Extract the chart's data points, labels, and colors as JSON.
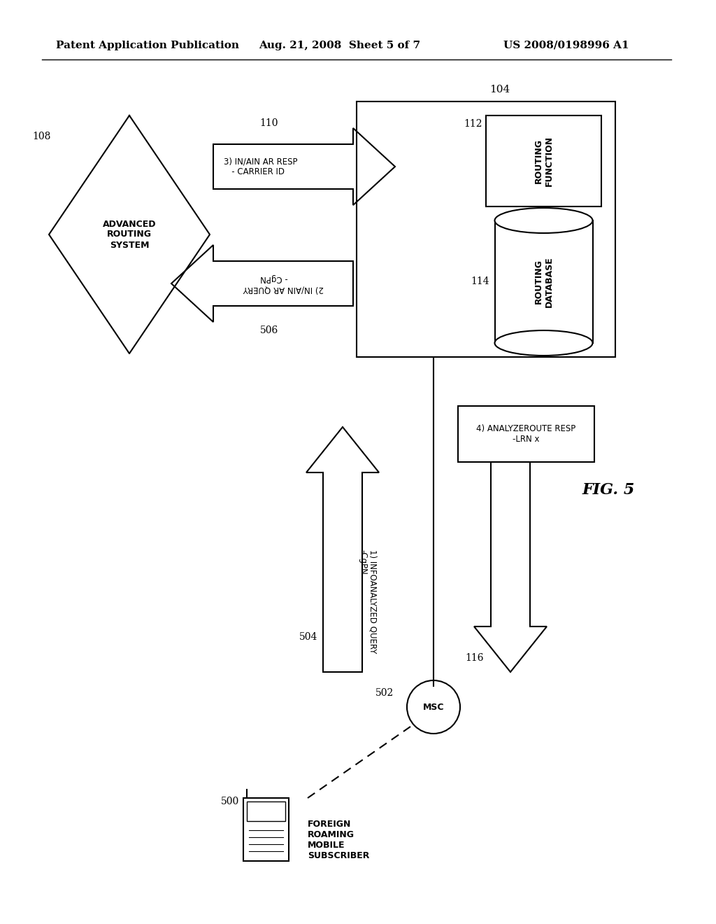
{
  "header_left": "Patent Application Publication",
  "header_mid": "Aug. 21, 2008  Sheet 5 of 7",
  "header_right": "US 2008/0198996 A1",
  "fig_label": "FIG. 5",
  "background_color": "#ffffff",
  "line_color": "#000000",
  "label_108": "108",
  "label_110": "110",
  "label_104": "104",
  "label_112": "112",
  "label_114": "114",
  "label_506": "506",
  "label_504": "504",
  "label_502": "502",
  "label_500": "500",
  "label_116": "116",
  "text_ars": "ADVANCED\nROUTING\nSYSTEM",
  "text_rf": "ROUTING\nFUNCTION",
  "text_rdb": "ROUTING\nDATABASE",
  "text_resp": "3) IN/AIN AR RESP\n   - CARRIER ID",
  "text_query": "2) IN/AIN AR QUERY\n       - CgPN",
  "text_msc": "MSC",
  "text_foreign": "FOREIGN\nROAMING\nMOBILE\nSUBSCRIBER",
  "text_info": "1) INFOANALYZED QUERY\n-CgPN",
  "text_analyze": "4) ANALYZEROUTE RESP\n-LRN x"
}
